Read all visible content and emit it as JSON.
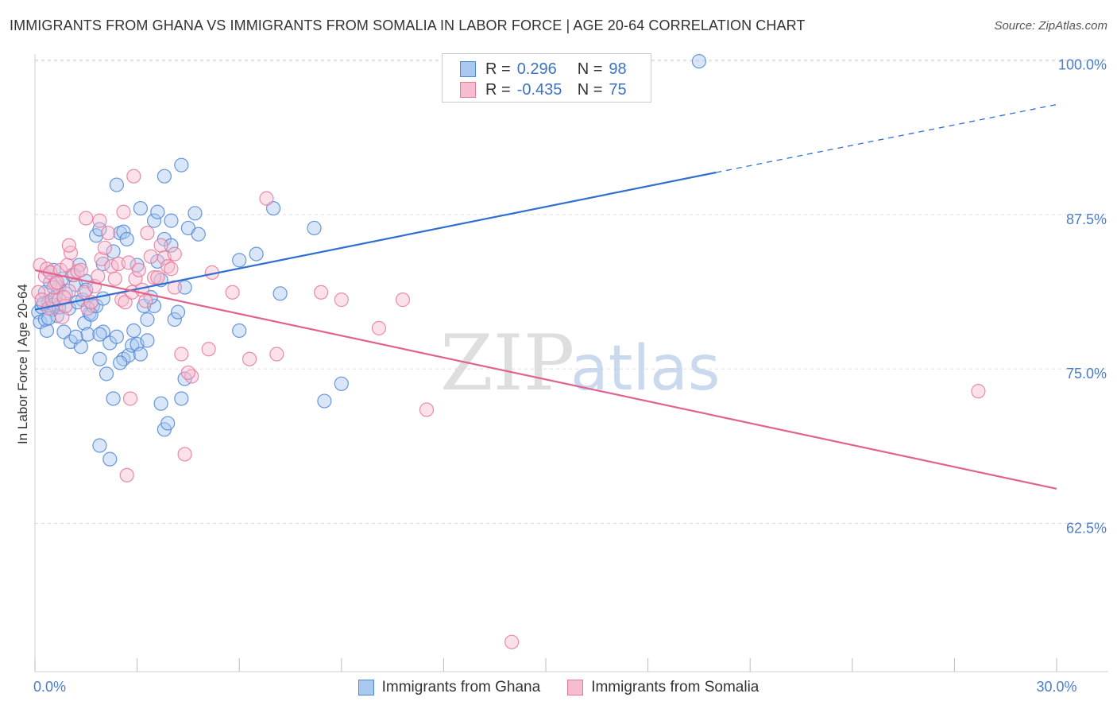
{
  "title": "IMMIGRANTS FROM GHANA VS IMMIGRANTS FROM SOMALIA IN LABOR FORCE | AGE 20-64 CORRELATION CHART",
  "source": "Source: ZipAtlas.com",
  "watermark": {
    "zip": "ZIP",
    "atlas": "atlas"
  },
  "legend": {
    "rows": [
      {
        "r_label": "R =",
        "r_value": "0.296",
        "n_label": "N =",
        "n_value": "98"
      },
      {
        "r_label": "R =",
        "r_value": "-0.435",
        "n_label": "N =",
        "n_value": "75"
      }
    ]
  },
  "colors": {
    "ghana_fill": "#a9c8f0",
    "ghana_stroke": "#4f86d6",
    "ghana_line": "#2f6fd0",
    "somalia_fill": "#f6bcd0",
    "somalia_stroke": "#e6789d",
    "somalia_line": "#e0628f",
    "grid": "#dcdcdc",
    "axis_text": "#4a7cc9"
  },
  "chart_data": {
    "type": "scatter",
    "ylabel": "In Labor Force | Age 20-64",
    "xlabel": "",
    "xlim": [
      0,
      30
    ],
    "ylim": [
      50.5,
      101
    ],
    "x_ticks": [
      0,
      3,
      6,
      9,
      12,
      15,
      18,
      21,
      24,
      27,
      30
    ],
    "x_tick_labels": [
      "0.0%",
      "",
      "",
      "",
      "",
      "",
      "",
      "",
      "",
      "",
      "30.0%"
    ],
    "y_ticks": [
      62.5,
      75.0,
      87.5,
      100.0
    ],
    "y_tick_labels": [
      "62.5%",
      "75.0%",
      "87.5%",
      "100.0%"
    ],
    "grid": "horizontal dashed",
    "legend_position": "top-center",
    "series": [
      {
        "name": "Immigrants from Ghana",
        "trend": {
          "x": [
            0,
            20
          ],
          "y": [
            79.8,
            90.9
          ],
          "dashed_to": [
            30,
            96.4
          ]
        },
        "points": [
          [
            0.1,
            79.6
          ],
          [
            0.2,
            80.0
          ],
          [
            0.15,
            78.8
          ],
          [
            0.3,
            81.2
          ],
          [
            0.4,
            80.4
          ],
          [
            0.5,
            79.8
          ],
          [
            0.35,
            78.1
          ],
          [
            0.6,
            80.8
          ],
          [
            0.7,
            81.6
          ],
          [
            0.8,
            82.3
          ],
          [
            0.55,
            80.2
          ],
          [
            0.9,
            81.1
          ],
          [
            1.0,
            79.9
          ],
          [
            1.1,
            82.6
          ],
          [
            1.2,
            81.8
          ],
          [
            1.3,
            83.4
          ],
          [
            1.4,
            80.6
          ],
          [
            1.5,
            82.1
          ],
          [
            1.6,
            79.5
          ],
          [
            1.7,
            80.1
          ],
          [
            0.45,
            82.0
          ],
          [
            0.65,
            79.3
          ],
          [
            0.85,
            78.0
          ],
          [
            1.05,
            77.2
          ],
          [
            1.25,
            80.4
          ],
          [
            1.35,
            76.8
          ],
          [
            1.45,
            78.7
          ],
          [
            1.55,
            77.8
          ],
          [
            1.65,
            79.4
          ],
          [
            1.8,
            80.1
          ],
          [
            2.0,
            78.0
          ],
          [
            2.2,
            77.1
          ],
          [
            2.4,
            77.6
          ],
          [
            2.6,
            75.8
          ],
          [
            2.75,
            76.1
          ],
          [
            2.85,
            76.9
          ],
          [
            2.1,
            74.6
          ],
          [
            2.5,
            75.5
          ],
          [
            3.0,
            77.0
          ],
          [
            3.3,
            77.3
          ],
          [
            2.3,
            72.6
          ],
          [
            1.9,
            75.8
          ],
          [
            3.7,
            72.2
          ],
          [
            3.8,
            70.1
          ],
          [
            3.9,
            70.6
          ],
          [
            4.3,
            72.6
          ],
          [
            1.9,
            68.8
          ],
          [
            2.2,
            67.7
          ],
          [
            1.9,
            77.8
          ],
          [
            3.3,
            79.0
          ],
          [
            3.2,
            80.1
          ],
          [
            3.5,
            80.1
          ],
          [
            3.7,
            82.2
          ],
          [
            4.1,
            79.0
          ],
          [
            4.2,
            79.6
          ],
          [
            4.4,
            81.6
          ],
          [
            3.0,
            83.4
          ],
          [
            3.6,
            83.7
          ],
          [
            3.8,
            85.5
          ],
          [
            4.0,
            85.0
          ],
          [
            2.3,
            84.5
          ],
          [
            2.5,
            86.0
          ],
          [
            2.6,
            86.1
          ],
          [
            2.7,
            85.5
          ],
          [
            1.8,
            85.8
          ],
          [
            1.9,
            86.3
          ],
          [
            2.0,
            83.5
          ],
          [
            3.5,
            87.0
          ],
          [
            4.0,
            87.0
          ],
          [
            4.5,
            86.4
          ],
          [
            4.8,
            85.9
          ],
          [
            4.7,
            87.6
          ],
          [
            3.1,
            88.0
          ],
          [
            3.6,
            87.7
          ],
          [
            3.8,
            90.6
          ],
          [
            4.3,
            91.5
          ],
          [
            2.4,
            89.9
          ],
          [
            6.5,
            84.3
          ],
          [
            6.0,
            83.8
          ],
          [
            7.0,
            88.0
          ],
          [
            8.2,
            86.4
          ],
          [
            9.0,
            73.8
          ],
          [
            8.5,
            72.4
          ],
          [
            6.0,
            78.1
          ],
          [
            7.2,
            81.1
          ],
          [
            4.4,
            74.2
          ],
          [
            1.2,
            77.6
          ],
          [
            0.3,
            79.0
          ],
          [
            0.25,
            80.3
          ],
          [
            0.7,
            80.0
          ],
          [
            1.5,
            81.4
          ],
          [
            2.0,
            80.7
          ],
          [
            2.9,
            78.1
          ],
          [
            3.4,
            80.8
          ],
          [
            3.1,
            76.2
          ],
          [
            19.5,
            99.9
          ],
          [
            0.4,
            79.1
          ],
          [
            0.55,
            83.0
          ]
        ]
      },
      {
        "name": "Immigrants from Somalia",
        "trend": {
          "x": [
            0,
            30
          ],
          "y": [
            83.0,
            65.3
          ]
        },
        "points": [
          [
            0.1,
            81.2
          ],
          [
            0.2,
            80.6
          ],
          [
            0.3,
            82.5
          ],
          [
            0.4,
            79.9
          ],
          [
            0.5,
            80.6
          ],
          [
            0.6,
            81.9
          ],
          [
            0.7,
            80.6
          ],
          [
            0.8,
            79.2
          ],
          [
            0.9,
            80.1
          ],
          [
            1.0,
            81.3
          ],
          [
            0.15,
            83.4
          ],
          [
            0.35,
            83.1
          ],
          [
            0.45,
            82.8
          ],
          [
            0.55,
            81.6
          ],
          [
            0.65,
            82.0
          ],
          [
            0.75,
            83.0
          ],
          [
            0.85,
            80.8
          ],
          [
            0.95,
            83.4
          ],
          [
            1.05,
            84.4
          ],
          [
            1.15,
            82.6
          ],
          [
            1.25,
            82.9
          ],
          [
            1.35,
            83.0
          ],
          [
            1.45,
            81.2
          ],
          [
            1.55,
            79.9
          ],
          [
            1.65,
            80.4
          ],
          [
            1.75,
            81.7
          ],
          [
            1.85,
            82.5
          ],
          [
            1.95,
            83.9
          ],
          [
            2.05,
            84.8
          ],
          [
            2.15,
            86.0
          ],
          [
            2.25,
            83.3
          ],
          [
            2.35,
            82.3
          ],
          [
            2.45,
            83.5
          ],
          [
            2.55,
            80.6
          ],
          [
            2.65,
            80.4
          ],
          [
            2.75,
            83.6
          ],
          [
            2.85,
            81.2
          ],
          [
            2.95,
            82.3
          ],
          [
            3.05,
            83.0
          ],
          [
            3.15,
            81.4
          ],
          [
            3.25,
            80.5
          ],
          [
            3.4,
            84.1
          ],
          [
            3.5,
            82.4
          ],
          [
            3.6,
            82.4
          ],
          [
            3.7,
            85.0
          ],
          [
            3.8,
            84.0
          ],
          [
            3.9,
            83.3
          ],
          [
            4.0,
            83.1
          ],
          [
            4.1,
            81.6
          ],
          [
            4.3,
            76.2
          ],
          [
            2.6,
            87.7
          ],
          [
            2.9,
            90.6
          ],
          [
            3.3,
            86.0
          ],
          [
            1.5,
            87.2
          ],
          [
            1.9,
            87.0
          ],
          [
            1.0,
            85.0
          ],
          [
            4.1,
            84.3
          ],
          [
            6.8,
            88.8
          ],
          [
            5.2,
            82.8
          ],
          [
            5.8,
            81.2
          ],
          [
            6.3,
            75.8
          ],
          [
            7.1,
            76.2
          ],
          [
            8.4,
            81.2
          ],
          [
            9.0,
            80.6
          ],
          [
            10.1,
            78.3
          ],
          [
            10.8,
            80.6
          ],
          [
            11.5,
            71.7
          ],
          [
            5.1,
            76.6
          ],
          [
            4.6,
            74.4
          ],
          [
            4.5,
            74.7
          ],
          [
            2.8,
            72.6
          ],
          [
            4.4,
            68.1
          ],
          [
            2.7,
            66.4
          ],
          [
            14.0,
            52.9
          ],
          [
            27.7,
            73.2
          ]
        ]
      }
    ]
  }
}
